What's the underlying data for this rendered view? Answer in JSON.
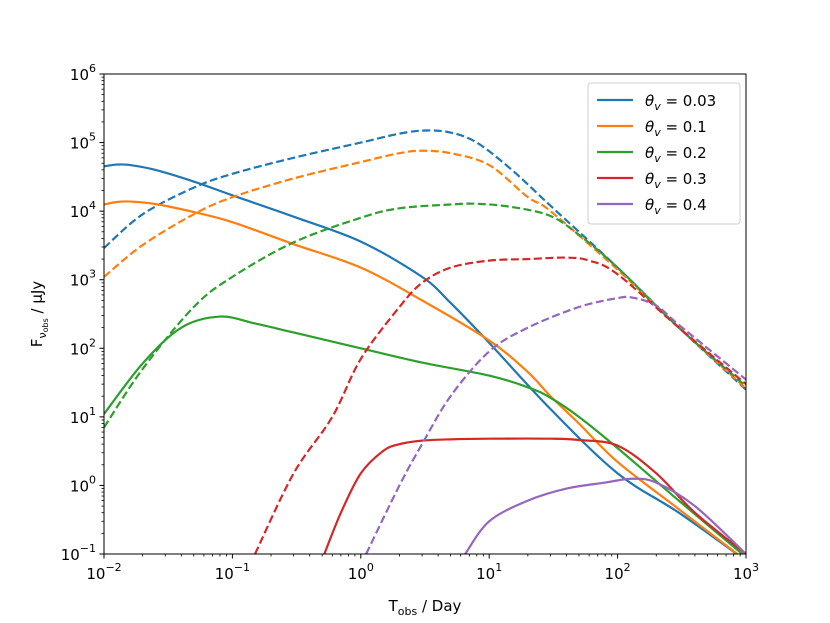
{
  "chart_data": {
    "type": "line",
    "xlabel": "T",
    "xlabel_sub": "obs",
    "xlabel_suffix": " / Day",
    "ylabel": "F",
    "ylabel_sub": "ν",
    "ylabel_subsub": "obs",
    "ylabel_suffix": " / μJy",
    "xscale": "log",
    "yscale": "log",
    "xlim": [
      0.01,
      1000
    ],
    "ylim": [
      0.1,
      1000000
    ],
    "x_ticks": [
      {
        "value": 0.01,
        "base": "10",
        "exp": "−2"
      },
      {
        "value": 0.1,
        "base": "10",
        "exp": "−1"
      },
      {
        "value": 1,
        "base": "10",
        "exp": "0"
      },
      {
        "value": 10,
        "base": "10",
        "exp": "1"
      },
      {
        "value": 100,
        "base": "10",
        "exp": "2"
      },
      {
        "value": 1000,
        "base": "10",
        "exp": "3"
      }
    ],
    "y_ticks": [
      {
        "value": 0.1,
        "base": "10",
        "exp": "−1"
      },
      {
        "value": 1,
        "base": "10",
        "exp": "0"
      },
      {
        "value": 10,
        "base": "10",
        "exp": "1"
      },
      {
        "value": 100,
        "base": "10",
        "exp": "2"
      },
      {
        "value": 1000,
        "base": "10",
        "exp": "3"
      },
      {
        "value": 10000,
        "base": "10",
        "exp": "4"
      },
      {
        "value": 100000,
        "base": "10",
        "exp": "5"
      },
      {
        "value": 1000000,
        "base": "10",
        "exp": "6"
      }
    ],
    "legend_position": "top-right",
    "legend_symbol": "θ",
    "legend_subscript": "v",
    "series": [
      {
        "name": "θv = 0.03",
        "theta": "0.03",
        "color": "#1f77b4",
        "solid": [
          [
            0.01,
            45000
          ],
          [
            0.0126,
            47800
          ],
          [
            0.016,
            47000
          ],
          [
            0.025,
            40000
          ],
          [
            0.05,
            27000
          ],
          [
            0.1,
            17000
          ],
          [
            0.3,
            8300
          ],
          [
            1,
            3600
          ],
          [
            3,
            1100
          ],
          [
            5,
            460
          ],
          [
            10,
            120
          ],
          [
            30,
            13
          ],
          [
            100,
            1.5
          ],
          [
            300,
            0.4
          ],
          [
            1000,
            0.08
          ]
        ],
        "dashed": [
          [
            0.01,
            2900
          ],
          [
            0.02,
            9000
          ],
          [
            0.05,
            22000
          ],
          [
            0.1,
            35000
          ],
          [
            0.3,
            60000
          ],
          [
            1,
            100000
          ],
          [
            2,
            135000
          ],
          [
            3.2,
            150000
          ],
          [
            5,
            140000
          ],
          [
            8,
            100000
          ],
          [
            15,
            40000
          ],
          [
            30,
            12000
          ],
          [
            100,
            1500
          ],
          [
            300,
            200
          ],
          [
            1000,
            25
          ]
        ]
      },
      {
        "name": "θv = 0.1",
        "theta": "0.1",
        "color": "#ff7f0e",
        "solid": [
          [
            0.01,
            12500
          ],
          [
            0.0126,
            13600
          ],
          [
            0.016,
            13800
          ],
          [
            0.025,
            12700
          ],
          [
            0.05,
            9700
          ],
          [
            0.1,
            6900
          ],
          [
            0.3,
            3300
          ],
          [
            1,
            1500
          ],
          [
            3,
            500
          ],
          [
            10,
            130
          ],
          [
            20,
            45
          ],
          [
            30,
            20
          ],
          [
            50,
            8
          ],
          [
            100,
            2.2
          ],
          [
            300,
            0.45
          ],
          [
            1000,
            0.08
          ]
        ],
        "dashed": [
          [
            0.01,
            1100
          ],
          [
            0.02,
            3200
          ],
          [
            0.05,
            9000
          ],
          [
            0.1,
            16000
          ],
          [
            0.3,
            30000
          ],
          [
            1,
            52000
          ],
          [
            2,
            70000
          ],
          [
            3,
            76000
          ],
          [
            5,
            70000
          ],
          [
            10,
            47000
          ],
          [
            20,
            16000
          ],
          [
            30,
            10000
          ],
          [
            100,
            1400
          ],
          [
            300,
            200
          ],
          [
            1000,
            26
          ]
        ]
      },
      {
        "name": "θv = 0.2",
        "theta": "0.2",
        "color": "#2ca02c",
        "solid": [
          [
            0.01,
            11
          ],
          [
            0.02,
            60
          ],
          [
            0.04,
            200
          ],
          [
            0.08,
            290
          ],
          [
            0.15,
            230
          ],
          [
            0.3,
            170
          ],
          [
            1,
            100
          ],
          [
            3,
            62
          ],
          [
            10,
            40
          ],
          [
            20,
            27
          ],
          [
            30,
            19
          ],
          [
            50,
            10
          ],
          [
            100,
            3.5
          ],
          [
            300,
            0.6
          ],
          [
            1000,
            0.09
          ]
        ],
        "dashed": [
          [
            0.01,
            7
          ],
          [
            0.02,
            50
          ],
          [
            0.05,
            400
          ],
          [
            0.1,
            1100
          ],
          [
            0.3,
            3500
          ],
          [
            1,
            8000
          ],
          [
            2,
            11000
          ],
          [
            5,
            12500
          ],
          [
            8,
            12800
          ],
          [
            15,
            11500
          ],
          [
            30,
            8500
          ],
          [
            50,
            4500
          ],
          [
            100,
            1500
          ],
          [
            300,
            200
          ],
          [
            1000,
            28
          ]
        ]
      },
      {
        "name": "θv = 0.3",
        "theta": "0.3",
        "color": "#d62728",
        "solid": [
          [
            0.52,
            0.1
          ],
          [
            0.7,
            0.4
          ],
          [
            1,
            1.5
          ],
          [
            1.5,
            3.2
          ],
          [
            2,
            4
          ],
          [
            3,
            4.5
          ],
          [
            5,
            4.7
          ],
          [
            10,
            4.8
          ],
          [
            30,
            4.8
          ],
          [
            50,
            4.6
          ],
          [
            100,
            3.8
          ],
          [
            200,
            1.5
          ],
          [
            400,
            0.4
          ],
          [
            1000,
            0.1
          ]
        ],
        "dashed": [
          [
            0.15,
            0.1
          ],
          [
            0.3,
            1.5
          ],
          [
            0.6,
            10
          ],
          [
            1,
            70
          ],
          [
            2,
            400
          ],
          [
            3,
            900
          ],
          [
            5,
            1500
          ],
          [
            10,
            1900
          ],
          [
            20,
            2000
          ],
          [
            40,
            2100
          ],
          [
            60,
            1900
          ],
          [
            100,
            1200
          ],
          [
            300,
            200
          ],
          [
            1000,
            30
          ]
        ]
      },
      {
        "name": "θv = 0.4",
        "theta": "0.4",
        "color": "#9467bd",
        "solid": [
          [
            6.5,
            0.1
          ],
          [
            10,
            0.3
          ],
          [
            20,
            0.6
          ],
          [
            40,
            0.9
          ],
          [
            80,
            1.1
          ],
          [
            130,
            1.25
          ],
          [
            200,
            1.1
          ],
          [
            400,
            0.5
          ],
          [
            1000,
            0.1
          ]
        ],
        "dashed": [
          [
            1.1,
            0.1
          ],
          [
            2,
            1
          ],
          [
            3,
            4
          ],
          [
            5,
            20
          ],
          [
            10,
            90
          ],
          [
            20,
            200
          ],
          [
            50,
            400
          ],
          [
            100,
            540
          ],
          [
            130,
            550
          ],
          [
            200,
            420
          ],
          [
            300,
            220
          ],
          [
            1000,
            35
          ]
        ]
      }
    ]
  }
}
